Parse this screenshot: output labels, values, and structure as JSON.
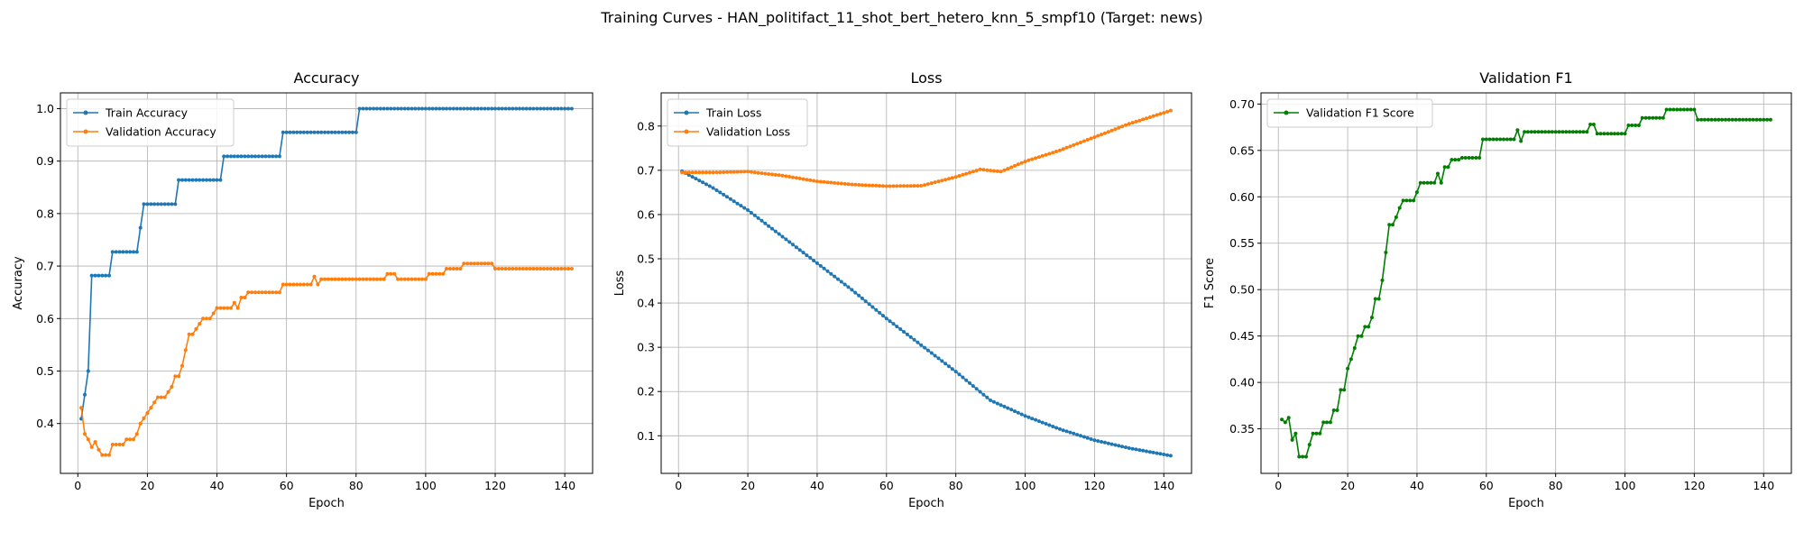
{
  "figure": {
    "suptitle": "Training Curves - HAN_politifact_11_shot_bert_hetero_knn_5_smpf10 (Target: news)"
  },
  "chart_data": [
    {
      "type": "line",
      "title": "Accuracy",
      "xlabel": "Epoch",
      "ylabel": "Accuracy",
      "xlim": [
        -5,
        148
      ],
      "ylim": [
        0.305,
        1.03
      ],
      "xticks": [
        0,
        20,
        40,
        60,
        80,
        100,
        120,
        140
      ],
      "yticks": [
        0.4,
        0.5,
        0.6,
        0.7,
        0.8,
        0.9,
        1.0
      ],
      "ytick_labels": [
        "0.4",
        "0.5",
        "0.6",
        "0.7",
        "0.8",
        "0.9",
        "1.0"
      ],
      "grid": true,
      "legend_position": "upper-left",
      "x": {
        "start": 1,
        "end": 142,
        "step": 1
      },
      "series": [
        {
          "name": "Train Accuracy",
          "color": "#1f77b4",
          "points": [
            [
              1,
              0.409
            ],
            [
              2,
              0.455
            ],
            [
              3,
              0.5
            ],
            [
              4,
              0.682
            ],
            [
              9,
              0.682
            ],
            [
              10,
              0.727
            ],
            [
              17,
              0.727
            ],
            [
              18,
              0.773
            ],
            [
              19,
              0.818
            ],
            [
              28,
              0.818
            ],
            [
              29,
              0.864
            ],
            [
              41,
              0.864
            ],
            [
              42,
              0.909
            ],
            [
              58,
              0.909
            ],
            [
              59,
              0.955
            ],
            [
              80,
              0.955
            ],
            [
              81,
              1.0
            ],
            [
              142,
              1.0
            ]
          ]
        },
        {
          "name": "Validation Accuracy",
          "color": "#ff7f0e",
          "points": [
            [
              1,
              0.43
            ],
            [
              2,
              0.38
            ],
            [
              3,
              0.37
            ],
            [
              4,
              0.355
            ],
            [
              5,
              0.365
            ],
            [
              6,
              0.35
            ],
            [
              7,
              0.34
            ],
            [
              9,
              0.34
            ],
            [
              10,
              0.36
            ],
            [
              13,
              0.36
            ],
            [
              14,
              0.37
            ],
            [
              16,
              0.37
            ],
            [
              17,
              0.38
            ],
            [
              18,
              0.4
            ],
            [
              19,
              0.41
            ],
            [
              20,
              0.42
            ],
            [
              21,
              0.43
            ],
            [
              22,
              0.44
            ],
            [
              23,
              0.45
            ],
            [
              25,
              0.45
            ],
            [
              26,
              0.46
            ],
            [
              27,
              0.47
            ],
            [
              28,
              0.49
            ],
            [
              29,
              0.49
            ],
            [
              30,
              0.51
            ],
            [
              31,
              0.54
            ],
            [
              32,
              0.57
            ],
            [
              33,
              0.57
            ],
            [
              34,
              0.58
            ],
            [
              35,
              0.59
            ],
            [
              36,
              0.6
            ],
            [
              38,
              0.6
            ],
            [
              39,
              0.61
            ],
            [
              40,
              0.62
            ],
            [
              44,
              0.62
            ],
            [
              45,
              0.63
            ],
            [
              46,
              0.62
            ],
            [
              47,
              0.64
            ],
            [
              48,
              0.64
            ],
            [
              49,
              0.65
            ],
            [
              58,
              0.65
            ],
            [
              59,
              0.665
            ],
            [
              67,
              0.665
            ],
            [
              68,
              0.68
            ],
            [
              69,
              0.665
            ],
            [
              70,
              0.675
            ],
            [
              88,
              0.675
            ],
            [
              89,
              0.685
            ],
            [
              91,
              0.685
            ],
            [
              92,
              0.675
            ],
            [
              100,
              0.675
            ],
            [
              101,
              0.685
            ],
            [
              105,
              0.685
            ],
            [
              106,
              0.695
            ],
            [
              110,
              0.695
            ],
            [
              111,
              0.705
            ],
            [
              119,
              0.705
            ],
            [
              120,
              0.695
            ],
            [
              142,
              0.695
            ]
          ]
        }
      ]
    },
    {
      "type": "line",
      "title": "Loss",
      "xlabel": "Epoch",
      "ylabel": "Loss",
      "xlim": [
        -5,
        148
      ],
      "ylim": [
        0.015,
        0.875
      ],
      "xticks": [
        0,
        20,
        40,
        60,
        80,
        100,
        120,
        140
      ],
      "yticks": [
        0.1,
        0.2,
        0.3,
        0.4,
        0.5,
        0.6,
        0.7,
        0.8
      ],
      "ytick_labels": [
        "0.1",
        "0.2",
        "0.3",
        "0.4",
        "0.5",
        "0.6",
        "0.7",
        "0.8"
      ],
      "grid": true,
      "legend_position": "upper-left",
      "x": {
        "start": 1,
        "end": 142,
        "step": 1
      },
      "series": [
        {
          "name": "Train Loss",
          "color": "#1f77b4",
          "points": [
            [
              1,
              0.698
            ],
            [
              10,
              0.66
            ],
            [
              20,
              0.61
            ],
            [
              30,
              0.55
            ],
            [
              40,
              0.49
            ],
            [
              50,
              0.43
            ],
            [
              60,
              0.365
            ],
            [
              70,
              0.305
            ],
            [
              80,
              0.245
            ],
            [
              90,
              0.18
            ],
            [
              100,
              0.145
            ],
            [
              110,
              0.115
            ],
            [
              120,
              0.09
            ],
            [
              130,
              0.072
            ],
            [
              142,
              0.055
            ]
          ]
        },
        {
          "name": "Validation Loss",
          "color": "#ff7f0e",
          "points": [
            [
              1,
              0.695
            ],
            [
              10,
              0.695
            ],
            [
              20,
              0.697
            ],
            [
              30,
              0.688
            ],
            [
              40,
              0.675
            ],
            [
              50,
              0.668
            ],
            [
              60,
              0.664
            ],
            [
              70,
              0.665
            ],
            [
              80,
              0.685
            ],
            [
              87,
              0.702
            ],
            [
              93,
              0.697
            ],
            [
              100,
              0.72
            ],
            [
              110,
              0.745
            ],
            [
              120,
              0.775
            ],
            [
              130,
              0.805
            ],
            [
              142,
              0.835
            ]
          ]
        }
      ]
    },
    {
      "type": "line",
      "title": "Validation F1",
      "xlabel": "Epoch",
      "ylabel": "F1 Score",
      "xlim": [
        -5,
        148
      ],
      "ylim": [
        0.302,
        0.712
      ],
      "xticks": [
        0,
        20,
        40,
        60,
        80,
        100,
        120,
        140
      ],
      "yticks": [
        0.35,
        0.4,
        0.45,
        0.5,
        0.55,
        0.6,
        0.65,
        0.7
      ],
      "ytick_labels": [
        "0.35",
        "0.40",
        "0.45",
        "0.50",
        "0.55",
        "0.60",
        "0.65",
        "0.70"
      ],
      "grid": true,
      "legend_position": "upper-left",
      "x": {
        "start": 1,
        "end": 142,
        "step": 1
      },
      "series": [
        {
          "name": "Validation F1 Score",
          "color": "#008000",
          "points": [
            [
              1,
              0.36
            ],
            [
              2,
              0.357
            ],
            [
              3,
              0.362
            ],
            [
              4,
              0.338
            ],
            [
              5,
              0.345
            ],
            [
              6,
              0.32
            ],
            [
              8,
              0.32
            ],
            [
              9,
              0.333
            ],
            [
              10,
              0.345
            ],
            [
              12,
              0.345
            ],
            [
              13,
              0.357
            ],
            [
              15,
              0.357
            ],
            [
              16,
              0.37
            ],
            [
              17,
              0.37
            ],
            [
              18,
              0.392
            ],
            [
              19,
              0.392
            ],
            [
              20,
              0.415
            ],
            [
              21,
              0.425
            ],
            [
              22,
              0.437
            ],
            [
              23,
              0.45
            ],
            [
              24,
              0.45
            ],
            [
              25,
              0.46
            ],
            [
              26,
              0.46
            ],
            [
              27,
              0.47
            ],
            [
              28,
              0.49
            ],
            [
              29,
              0.49
            ],
            [
              30,
              0.51
            ],
            [
              31,
              0.54
            ],
            [
              32,
              0.57
            ],
            [
              33,
              0.57
            ],
            [
              34,
              0.578
            ],
            [
              35,
              0.588
            ],
            [
              36,
              0.596
            ],
            [
              39,
              0.596
            ],
            [
              40,
              0.605
            ],
            [
              41,
              0.615
            ],
            [
              45,
              0.615
            ],
            [
              46,
              0.625
            ],
            [
              47,
              0.615
            ],
            [
              48,
              0.632
            ],
            [
              49,
              0.632
            ],
            [
              50,
              0.64
            ],
            [
              52,
              0.64
            ],
            [
              53,
              0.642
            ],
            [
              58,
              0.642
            ],
            [
              59,
              0.662
            ],
            [
              68,
              0.662
            ],
            [
              69,
              0.672
            ],
            [
              70,
              0.66
            ],
            [
              71,
              0.67
            ],
            [
              89,
              0.67
            ],
            [
              90,
              0.678
            ],
            [
              91,
              0.678
            ],
            [
              92,
              0.668
            ],
            [
              100,
              0.668
            ],
            [
              101,
              0.677
            ],
            [
              104,
              0.677
            ],
            [
              105,
              0.685
            ],
            [
              111,
              0.685
            ],
            [
              112,
              0.694
            ],
            [
              120,
              0.694
            ],
            [
              121,
              0.683
            ],
            [
              142,
              0.683
            ]
          ]
        }
      ]
    }
  ]
}
